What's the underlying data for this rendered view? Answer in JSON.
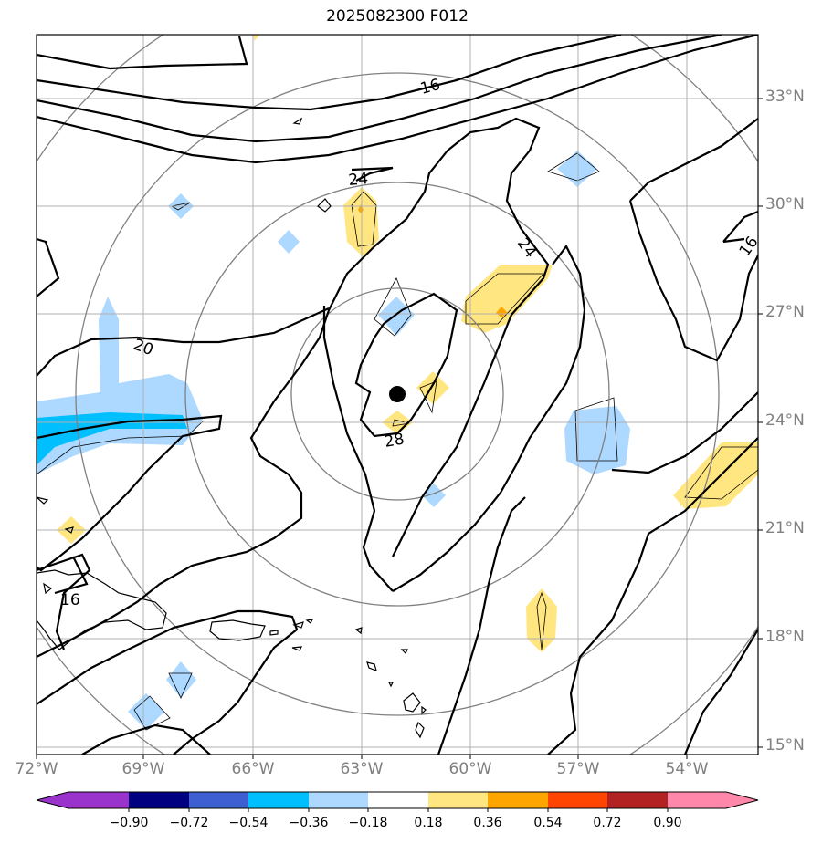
{
  "title": "2025082300 F012",
  "map": {
    "lat_labels": [
      "15°N",
      "18°N",
      "21°N",
      "24°N",
      "27°N",
      "30°N",
      "33°N"
    ],
    "lon_labels": [
      "72°W",
      "69°W",
      "66°W",
      "63°W",
      "60°W",
      "57°W",
      "54°W"
    ],
    "contour_labels": [
      "16",
      "20",
      "24",
      "24",
      "28",
      "16",
      "16"
    ],
    "storm_center": {
      "lon": "62°W",
      "lat": "24.8°N"
    }
  },
  "colorbar": {
    "labels": [
      "−0.90",
      "−0.72",
      "−0.54",
      "−0.36",
      "−0.18",
      "0.18",
      "0.36",
      "0.54",
      "0.72",
      "0.90"
    ],
    "colors": [
      "#9933cc",
      "#000080",
      "#3d5fd1",
      "#00bfff",
      "#add8ff",
      "#ffffff",
      "#ffe680",
      "#ffa500",
      "#ff4500",
      "#b22222",
      "#ff88aa"
    ]
  }
}
